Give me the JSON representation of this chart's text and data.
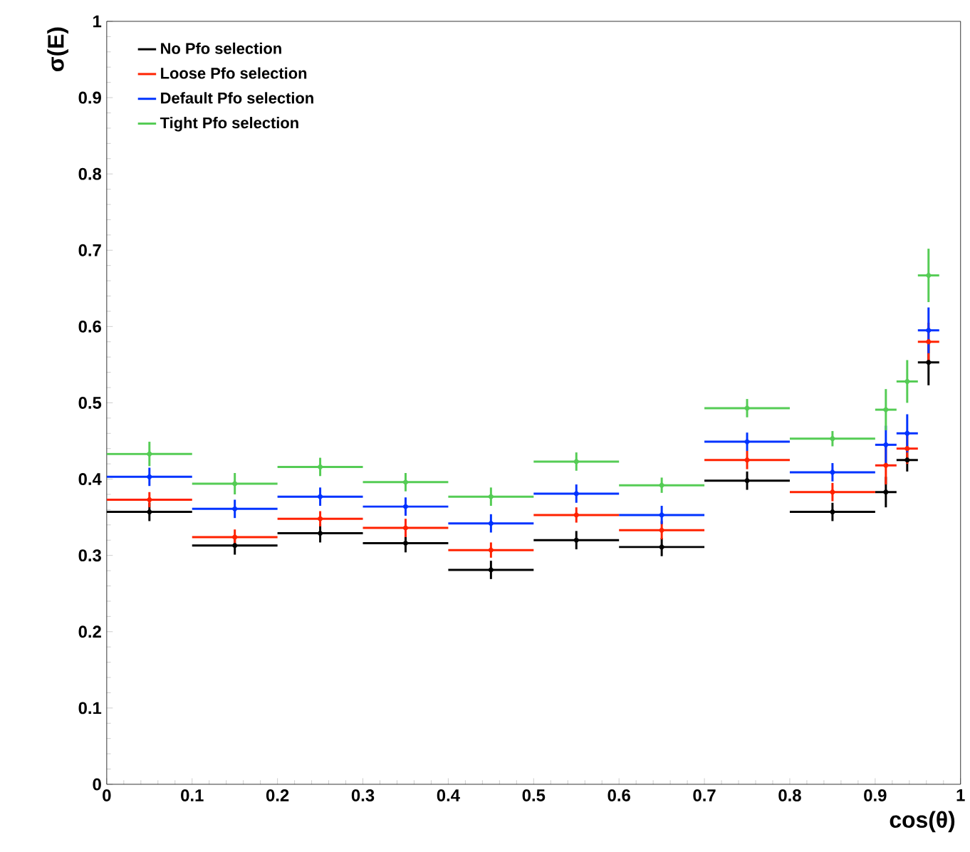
{
  "chart_data": {
    "type": "scatter",
    "xlabel": "cos(θ)",
    "ylabel": "σ(E)",
    "xlim": [
      0,
      1
    ],
    "ylim": [
      0,
      1
    ],
    "xticks": [
      0,
      0.1,
      0.2,
      0.3,
      0.4,
      0.5,
      0.6,
      0.7,
      0.8,
      0.9,
      1
    ],
    "yticks": [
      0,
      0.1,
      0.2,
      0.3,
      0.4,
      0.5,
      0.6,
      0.7,
      0.8,
      0.9,
      1
    ],
    "legend": "top left",
    "series": [
      {
        "name": "No Pfo selection",
        "color": "#000000",
        "x": [
          0.05,
          0.15,
          0.25,
          0.35,
          0.45,
          0.55,
          0.65,
          0.75,
          0.85,
          0.9125,
          0.9375,
          0.9625
        ],
        "values": [
          0.357,
          0.313,
          0.329,
          0.316,
          0.281,
          0.32,
          0.311,
          0.398,
          0.357,
          0.383,
          0.425,
          0.553
        ],
        "errors": [
          0.012,
          0.012,
          0.012,
          0.012,
          0.012,
          0.012,
          0.012,
          0.012,
          0.012,
          0.02,
          0.015,
          0.03
        ],
        "xerrors": [
          0.05,
          0.05,
          0.05,
          0.05,
          0.05,
          0.05,
          0.05,
          0.05,
          0.05,
          0.0125,
          0.0125,
          0.0125
        ]
      },
      {
        "name": "Loose Pfo selection",
        "color": "#ff2200",
        "x": [
          0.05,
          0.15,
          0.25,
          0.35,
          0.45,
          0.55,
          0.65,
          0.75,
          0.85,
          0.9125,
          0.9375,
          0.9625
        ],
        "values": [
          0.373,
          0.324,
          0.348,
          0.336,
          0.307,
          0.353,
          0.333,
          0.425,
          0.383,
          0.418,
          0.44,
          0.58
        ],
        "errors": [
          0.01,
          0.01,
          0.01,
          0.012,
          0.01,
          0.01,
          0.012,
          0.012,
          0.012,
          0.025,
          0.02,
          0.025
        ],
        "xerrors": [
          0.05,
          0.05,
          0.05,
          0.05,
          0.05,
          0.05,
          0.05,
          0.05,
          0.05,
          0.0125,
          0.0125,
          0.0125
        ]
      },
      {
        "name": "Default Pfo selection",
        "color": "#0033ff",
        "x": [
          0.05,
          0.15,
          0.25,
          0.35,
          0.45,
          0.55,
          0.65,
          0.75,
          0.85,
          0.9125,
          0.9375,
          0.9625
        ],
        "values": [
          0.403,
          0.361,
          0.377,
          0.364,
          0.342,
          0.381,
          0.353,
          0.449,
          0.409,
          0.445,
          0.46,
          0.595
        ],
        "errors": [
          0.012,
          0.012,
          0.012,
          0.012,
          0.012,
          0.012,
          0.012,
          0.012,
          0.012,
          0.025,
          0.025,
          0.03
        ],
        "xerrors": [
          0.05,
          0.05,
          0.05,
          0.05,
          0.05,
          0.05,
          0.05,
          0.05,
          0.05,
          0.0125,
          0.0125,
          0.0125
        ]
      },
      {
        "name": "Tight Pfo selection",
        "color": "#55cc55",
        "x": [
          0.05,
          0.15,
          0.25,
          0.35,
          0.45,
          0.55,
          0.65,
          0.75,
          0.85,
          0.9125,
          0.9375,
          0.9625
        ],
        "values": [
          0.433,
          0.394,
          0.416,
          0.396,
          0.377,
          0.423,
          0.392,
          0.493,
          0.453,
          0.491,
          0.528,
          0.667
        ],
        "errors": [
          0.016,
          0.014,
          0.012,
          0.012,
          0.012,
          0.012,
          0.01,
          0.012,
          0.01,
          0.027,
          0.028,
          0.035
        ],
        "xerrors": [
          0.05,
          0.05,
          0.05,
          0.05,
          0.05,
          0.05,
          0.05,
          0.05,
          0.05,
          0.0125,
          0.0125,
          0.0125
        ]
      }
    ]
  }
}
